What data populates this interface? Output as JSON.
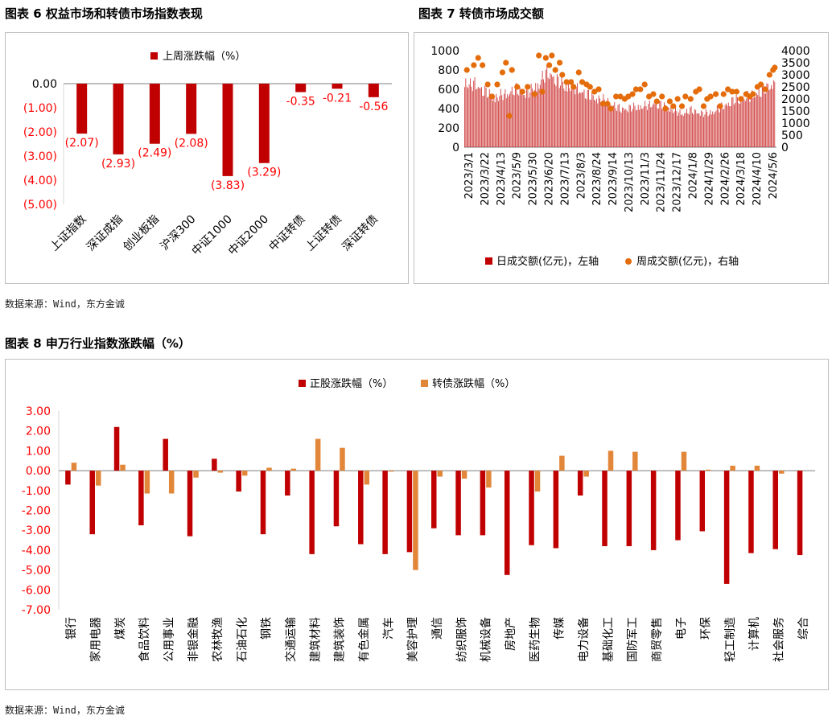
{
  "fig6": {
    "title": "图表 6  权益市场和转债市场指数表现",
    "source": "数据来源：Wind，东方金诚",
    "colors": {
      "bar": "#c00000",
      "label": "#ff0000"
    },
    "chart_data": {
      "type": "bar",
      "categories": [
        "上证指数",
        "深证成指",
        "创业板指",
        "沪深300",
        "中证1000",
        "中证2000",
        "中证转债",
        "上证转债",
        "深证转债"
      ],
      "series": [
        {
          "name": "上周涨跌幅（%）",
          "values": [
            -2.07,
            -2.93,
            -2.49,
            -2.08,
            -3.83,
            -3.29,
            -0.35,
            -0.21,
            -0.56
          ]
        }
      ],
      "data_labels": [
        "(2.07)",
        "(2.93)",
        "(2.49)",
        "(2.08)",
        "(3.83)",
        "(3.29)",
        "-0.35",
        "-0.21",
        "-0.56"
      ],
      "ylim": [
        -5,
        0
      ],
      "yticks": [
        "0.00",
        "(1.00)",
        "(2.00)",
        "(3.00)",
        "(4.00)",
        "(5.00)"
      ],
      "legend": "top"
    }
  },
  "fig7": {
    "title": "图表 7  转债市场成交额",
    "colors": {
      "bar": "#c00000",
      "dot": "#e46c0a"
    },
    "chart_data": {
      "type": "bar",
      "x_ticks": [
        "2023/3/1",
        "2023/3/22",
        "2023/4/13",
        "2023/5/9",
        "2023/5/30",
        "2023/6/20",
        "2023/7/13",
        "2023/8/3",
        "2023/8/24",
        "2023/9/14",
        "2023/10/13",
        "2023/11/3",
        "2023/11/24",
        "2023/12/17",
        "2024/1/8",
        "2024/1/29",
        "2024/2/26",
        "2024/3/18",
        "2024/4/10",
        "2024/5/6"
      ],
      "left_axis": {
        "ticks": [
          "0",
          "100",
          "200",
          "300",
          "400",
          "500",
          "600",
          "700",
          "800",
          "900",
          "1000"
        ],
        "ylim": [
          0,
          1000
        ]
      },
      "right_axis": {
        "ticks": [
          "0",
          "500",
          "1000",
          "1500",
          "2000",
          "2500",
          "3000",
          "3500",
          "4000"
        ],
        "ylim": [
          0,
          4000
        ]
      },
      "daily_profile": [
        [
          0,
          760
        ],
        [
          6,
          690
        ],
        [
          12,
          720
        ],
        [
          20,
          650
        ],
        [
          28,
          600
        ],
        [
          36,
          560
        ],
        [
          44,
          590
        ],
        [
          52,
          620
        ],
        [
          60,
          660
        ],
        [
          68,
          610
        ],
        [
          76,
          630
        ],
        [
          84,
          700
        ],
        [
          90,
          780
        ],
        [
          96,
          850
        ],
        [
          102,
          800
        ],
        [
          108,
          740
        ],
        [
          116,
          700
        ],
        [
          124,
          680
        ],
        [
          132,
          650
        ],
        [
          140,
          600
        ],
        [
          148,
          570
        ],
        [
          156,
          540
        ],
        [
          164,
          520
        ],
        [
          172,
          470
        ],
        [
          180,
          430
        ],
        [
          188,
          440
        ],
        [
          196,
          450
        ],
        [
          204,
          460
        ],
        [
          212,
          470
        ],
        [
          220,
          500
        ],
        [
          228,
          470
        ],
        [
          236,
          440
        ],
        [
          244,
          400
        ],
        [
          252,
          380
        ],
        [
          260,
          420
        ],
        [
          268,
          400
        ],
        [
          276,
          380
        ],
        [
          284,
          390
        ],
        [
          292,
          430
        ],
        [
          300,
          470
        ],
        [
          308,
          520
        ],
        [
          316,
          540
        ],
        [
          324,
          560
        ],
        [
          332,
          580
        ],
        [
          340,
          620
        ],
        [
          346,
          650
        ],
        [
          352,
          700
        ],
        [
          357,
          720
        ]
      ],
      "weekly_points": [
        [
          3,
          3200
        ],
        [
          11,
          3400
        ],
        [
          16,
          3700
        ],
        [
          21,
          3400
        ],
        [
          27,
          2600
        ],
        [
          32,
          2100
        ],
        [
          38,
          2600
        ],
        [
          44,
          3100
        ],
        [
          48,
          3500
        ],
        [
          52,
          1300
        ],
        [
          55,
          3200
        ],
        [
          61,
          2500
        ],
        [
          67,
          2300
        ],
        [
          73,
          2500
        ],
        [
          81,
          2200
        ],
        [
          86,
          3800
        ],
        [
          90,
          2300
        ],
        [
          94,
          3700
        ],
        [
          98,
          3400
        ],
        [
          101,
          3800
        ],
        [
          105,
          3200
        ],
        [
          110,
          3500
        ],
        [
          113,
          3000
        ],
        [
          118,
          2700
        ],
        [
          123,
          2700
        ],
        [
          126,
          2500
        ],
        [
          132,
          3100
        ],
        [
          136,
          2700
        ],
        [
          141,
          2600
        ],
        [
          145,
          2500
        ],
        [
          150,
          2300
        ],
        [
          155,
          2400
        ],
        [
          160,
          1800
        ],
        [
          165,
          1800
        ],
        [
          169,
          1600
        ],
        [
          175,
          2100
        ],
        [
          180,
          2100
        ],
        [
          185,
          2000
        ],
        [
          189,
          2100
        ],
        [
          194,
          2200
        ],
        [
          198,
          2400
        ],
        [
          203,
          2400
        ],
        [
          208,
          2600
        ],
        [
          213,
          2100
        ],
        [
          218,
          2200
        ],
        [
          222,
          1900
        ],
        [
          228,
          2100
        ],
        [
          232,
          1600
        ],
        [
          237,
          1900
        ],
        [
          241,
          1700
        ],
        [
          246,
          2000
        ],
        [
          251,
          1700
        ],
        [
          255,
          2100
        ],
        [
          261,
          2000
        ],
        [
          267,
          2300
        ],
        [
          271,
          2400
        ],
        [
          276,
          1700
        ],
        [
          280,
          2000
        ],
        [
          284,
          2100
        ],
        [
          290,
          2200
        ],
        [
          295,
          1700
        ],
        [
          299,
          2200
        ],
        [
          304,
          2400
        ],
        [
          309,
          2300
        ],
        [
          314,
          2300
        ],
        [
          319,
          2000
        ],
        [
          325,
          2200
        ],
        [
          329,
          2100
        ],
        [
          333,
          2200
        ],
        [
          338,
          2500
        ],
        [
          342,
          2600
        ],
        [
          347,
          2400
        ],
        [
          352,
          3000
        ],
        [
          356,
          3200
        ],
        [
          358,
          3300
        ]
      ],
      "legend": [
        {
          "name": "日成交额(亿元)，左轴"
        },
        {
          "name": "周成交额(亿元)，右轴"
        }
      ]
    }
  },
  "fig8": {
    "title": "图表 8    申万行业指数涨跌幅（%）",
    "source": "数据来源：Wind，东方金诚",
    "colors": {
      "stock": "#c00000",
      "cb": "#e2873a"
    },
    "chart_data": {
      "type": "bar",
      "categories": [
        "银行",
        "家用电器",
        "煤炭",
        "食品饮料",
        "公用事业",
        "非银金融",
        "农林牧渔",
        "石油石化",
        "钢铁",
        "交通运输",
        "建筑材料",
        "建筑装饰",
        "有色金属",
        "汽车",
        "美容护理",
        "通信",
        "纺织服饰",
        "机械设备",
        "房地产",
        "医药生物",
        "传媒",
        "电力设备",
        "基础化工",
        "国防军工",
        "商贸零售",
        "电子",
        "环保",
        "轻工制造",
        "计算机",
        "社会服务",
        "综合"
      ],
      "series": [
        {
          "name": "正股涨跌幅（%）",
          "values": [
            -0.7,
            -3.2,
            2.2,
            -2.75,
            1.6,
            -3.3,
            0.6,
            -1.05,
            -3.2,
            -1.25,
            -4.2,
            -2.8,
            -3.7,
            -4.2,
            -4.1,
            -2.9,
            -3.25,
            -3.25,
            -5.25,
            -3.75,
            -3.9,
            -1.25,
            -3.8,
            -3.8,
            -4.0,
            -3.5,
            -3.05,
            -5.7,
            -4.15,
            -3.95,
            -4.25
          ]
        },
        {
          "name": "转债涨跌幅（%）",
          "values": [
            0.4,
            -0.75,
            0.3,
            -1.15,
            -1.15,
            -0.35,
            -0.1,
            -0.25,
            0.15,
            0.1,
            1.6,
            1.15,
            -0.7,
            -0.05,
            -5.0,
            -0.3,
            -0.4,
            -0.85,
            null,
            -1.05,
            0.75,
            -0.3,
            1.0,
            0.95,
            null,
            0.95,
            0.05,
            0.25,
            0.25,
            -0.15,
            null
          ]
        }
      ],
      "ylim": [
        -7,
        3
      ],
      "yticks": [
        "3.00",
        "2.00",
        "1.00",
        "0.00",
        "-1.00",
        "-2.00",
        "-3.00",
        "-4.00",
        "-5.00",
        "-6.00",
        "-7.00"
      ],
      "legend": "top"
    }
  }
}
